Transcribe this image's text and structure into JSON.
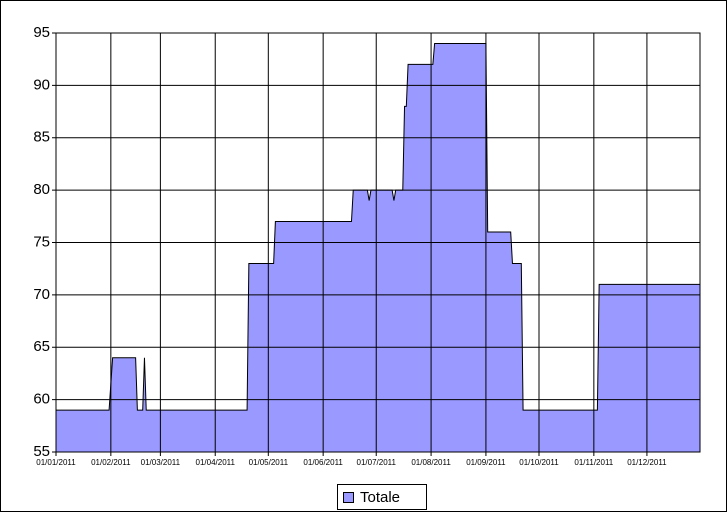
{
  "chart_data": {
    "type": "area",
    "x": [
      "01/01/2011",
      "31/01/2011",
      "02/02/2011",
      "15/02/2011",
      "16/02/2011",
      "19/02/2011",
      "20/02/2011",
      "21/02/2011",
      "19/04/2011",
      "20/04/2011",
      "04/05/2011",
      "05/05/2011",
      "17/06/2011",
      "18/06/2011",
      "26/06/2011",
      "27/06/2011",
      "28/06/2011",
      "10/07/2011",
      "11/07/2011",
      "12/07/2011",
      "16/07/2011",
      "17/07/2011",
      "18/07/2011",
      "19/07/2011",
      "02/08/2011",
      "03/08/2011",
      "01/09/2011",
      "02/09/2011",
      "15/09/2011",
      "16/09/2011",
      "21/09/2011",
      "22/09/2011",
      "03/11/2011",
      "04/11/2011",
      "31/12/2011"
    ],
    "series": [
      {
        "name": "Totale",
        "color": "#9999ff",
        "values": [
          59,
          59,
          64,
          64,
          59,
          59,
          64,
          59,
          59,
          73,
          73,
          77,
          77,
          80,
          80,
          79,
          80,
          80,
          79,
          80,
          80,
          88,
          88,
          92,
          92,
          94,
          94,
          76,
          76,
          73,
          73,
          59,
          59,
          71,
          71
        ]
      }
    ],
    "xlim": [
      "01/01/2011",
      "31/12/2011"
    ],
    "xticks": [
      "01/01/2011",
      "01/02/2011",
      "01/03/2011",
      "01/04/2011",
      "01/05/2011",
      "01/06/2011",
      "01/07/2011",
      "01/08/2011",
      "01/09/2011",
      "01/10/2011",
      "01/11/2011",
      "01/12/2011"
    ],
    "ylim": [
      55,
      95
    ],
    "yticks": [
      55,
      60,
      65,
      70,
      75,
      80,
      85,
      90,
      95
    ],
    "grid": true,
    "legend": "bottom"
  }
}
